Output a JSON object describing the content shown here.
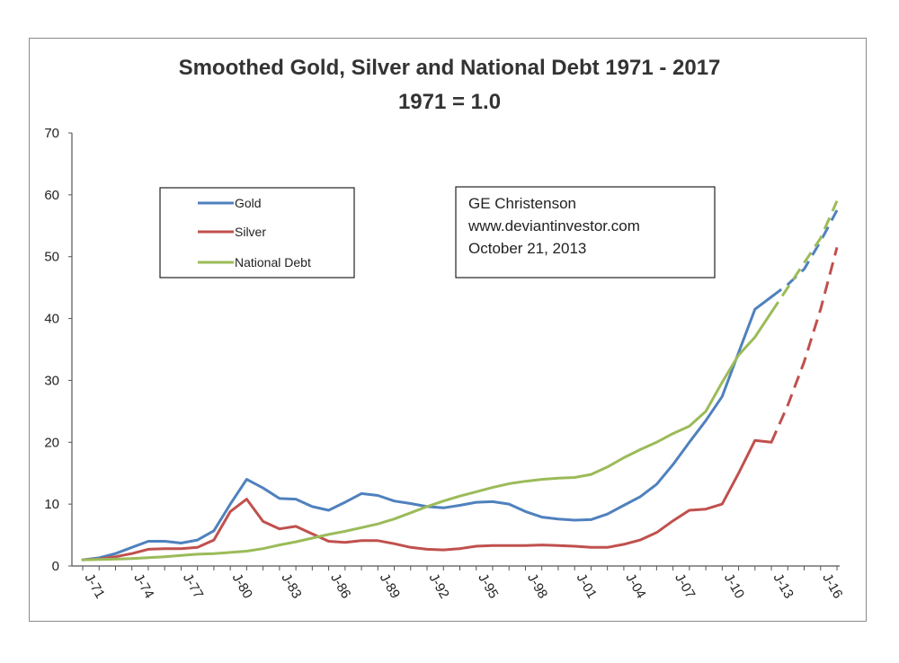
{
  "chart_data": {
    "type": "line",
    "title": "Smoothed Gold, Silver and National Debt 1971 - 2017",
    "subtitle": "1971 = 1.0",
    "ylim": [
      0,
      70
    ],
    "yticks": [
      0,
      10,
      20,
      30,
      40,
      50,
      60,
      70
    ],
    "xlim": [
      1971,
      2017
    ],
    "xticks": [
      {
        "label": "J-71",
        "x": 1971
      },
      {
        "label": "J-74",
        "x": 1974
      },
      {
        "label": "J-77",
        "x": 1977
      },
      {
        "label": "J-80",
        "x": 1980
      },
      {
        "label": "J-83",
        "x": 1983
      },
      {
        "label": "J-86",
        "x": 1986
      },
      {
        "label": "J-89",
        "x": 1989
      },
      {
        "label": "J-92",
        "x": 1992
      },
      {
        "label": "J-95",
        "x": 1995
      },
      {
        "label": "J-98",
        "x": 1998
      },
      {
        "label": "J-01",
        "x": 2001
      },
      {
        "label": "J-04",
        "x": 2004
      },
      {
        "label": "J-07",
        "x": 2007
      },
      {
        "label": "J-10",
        "x": 2010
      },
      {
        "label": "J-13",
        "x": 2013
      },
      {
        "label": "J-16",
        "x": 2016
      }
    ],
    "legend_position": "upper-left",
    "series": [
      {
        "name": "Gold",
        "color": "#4f81bd",
        "x": [
          1971,
          1972,
          1973,
          1974,
          1975,
          1976,
          1977,
          1978,
          1979,
          1980,
          1981,
          1982,
          1983,
          1984,
          1985,
          1986,
          1987,
          1988,
          1989,
          1990,
          1991,
          1992,
          1993,
          1994,
          1995,
          1996,
          1997,
          1998,
          1999,
          2000,
          2001,
          2002,
          2003,
          2004,
          2005,
          2006,
          2007,
          2008,
          2009,
          2010,
          2011,
          2012,
          2013
        ],
        "y": [
          1.0,
          1.3,
          2.0,
          3.0,
          4.0,
          4.0,
          3.7,
          4.2,
          5.7,
          10.0,
          14.0,
          12.6,
          10.9,
          10.8,
          9.6,
          9.0,
          10.3,
          11.7,
          11.4,
          10.5,
          10.1,
          9.6,
          9.4,
          9.8,
          10.3,
          10.4,
          10.0,
          8.8,
          7.9,
          7.6,
          7.4,
          7.5,
          8.4,
          9.8,
          11.2,
          13.2,
          16.4,
          20.0,
          23.5,
          27.4,
          34.5,
          41.5,
          43.5
        ],
        "projection_x": [
          2013,
          2014,
          2015,
          2016,
          2017
        ],
        "projection_y": [
          43.5,
          45.5,
          48.0,
          52.5,
          57.5
        ]
      },
      {
        "name": "Silver",
        "color": "#c0504d",
        "x": [
          1971,
          1972,
          1973,
          1974,
          1975,
          1976,
          1977,
          1978,
          1979,
          1980,
          1981,
          1982,
          1983,
          1984,
          1985,
          1986,
          1987,
          1988,
          1989,
          1990,
          1991,
          1992,
          1993,
          1994,
          1995,
          1996,
          1997,
          1998,
          1999,
          2000,
          2001,
          2002,
          2003,
          2004,
          2005,
          2006,
          2007,
          2008,
          2009,
          2010,
          2011,
          2012,
          2013
        ],
        "y": [
          1.0,
          1.1,
          1.5,
          2.0,
          2.7,
          2.8,
          2.8,
          3.0,
          4.2,
          8.8,
          10.8,
          7.2,
          6.0,
          6.4,
          5.2,
          4.0,
          3.8,
          4.1,
          4.1,
          3.6,
          3.0,
          2.7,
          2.6,
          2.8,
          3.2,
          3.3,
          3.3,
          3.3,
          3.4,
          3.3,
          3.2,
          3.0,
          3.0,
          3.5,
          4.2,
          5.4,
          7.3,
          9.0,
          9.2,
          10.0,
          15.0,
          20.3,
          20.0
        ],
        "projection_x": [
          2013,
          2014,
          2015,
          2016,
          2017
        ],
        "projection_y": [
          20.0,
          26.0,
          33.0,
          41.5,
          51.5
        ]
      },
      {
        "name": "National Debt",
        "color": "#9bbb59",
        "x": [
          1971,
          1972,
          1973,
          1974,
          1975,
          1976,
          1977,
          1978,
          1979,
          1980,
          1981,
          1982,
          1983,
          1984,
          1985,
          1986,
          1987,
          1988,
          1989,
          1990,
          1991,
          1992,
          1993,
          1994,
          1995,
          1996,
          1997,
          1998,
          1999,
          2000,
          2001,
          2002,
          2003,
          2004,
          2005,
          2006,
          2007,
          2008,
          2009,
          2010,
          2011,
          2012,
          2013
        ],
        "y": [
          1.0,
          1.05,
          1.1,
          1.2,
          1.35,
          1.5,
          1.7,
          1.9,
          2.0,
          2.2,
          2.4,
          2.8,
          3.4,
          3.9,
          4.5,
          5.1,
          5.6,
          6.2,
          6.8,
          7.6,
          8.6,
          9.6,
          10.5,
          11.3,
          12.0,
          12.7,
          13.3,
          13.7,
          14.0,
          14.2,
          14.3,
          14.8,
          16.0,
          17.5,
          18.8,
          20.0,
          21.4,
          22.6,
          25.0,
          29.7,
          34.1,
          37.0,
          41.0
        ],
        "projection_x": [
          2013,
          2014,
          2015,
          2016,
          2017
        ],
        "projection_y": [
          41.0,
          45.0,
          49.0,
          53.0,
          59.0
        ]
      }
    ],
    "note": {
      "lines": [
        "GE Christenson",
        "www.deviantinvestor.com",
        "October 21, 2013"
      ]
    }
  }
}
